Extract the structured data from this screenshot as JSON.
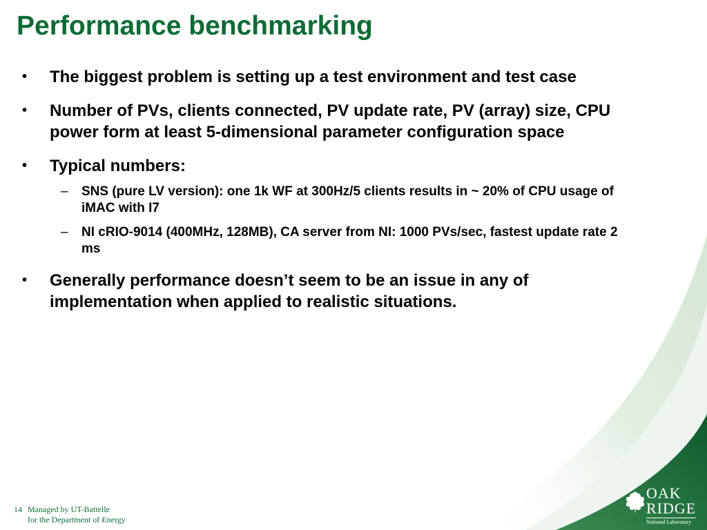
{
  "slide": {
    "title": "Performance benchmarking",
    "bullets": [
      {
        "text": "The biggest problem is setting up a test environment and test case"
      },
      {
        "text": "Number of PVs, clients connected, PV update rate, PV (array) size, CPU power form at least 5-dimensional parameter configuration space"
      },
      {
        "text": "Typical numbers:",
        "sub": [
          "SNS (pure LV version):  one 1k WF at 300Hz/5 clients results in ~ 20% of CPU usage of iMAC with I7",
          "NI  cRIO-9014 (400MHz, 128MB), CA server from NI: 1000 PVs/sec, fastest update rate 2 ms"
        ]
      },
      {
        "text": "Generally performance doesn’t seem to be an issue in any of implementation when applied to realistic situations."
      }
    ],
    "bullet_symbol": "•",
    "sub_bullet_symbol": "–"
  },
  "footer": {
    "page_number": "14",
    "line1": "Managed by UT-Battelle",
    "line2": "for the Department of Energy"
  },
  "logo": {
    "line1": "OAK",
    "line2": "RIDGE",
    "line3": "National Laboratory",
    "icon": "oak-leaf-icon"
  },
  "colors": {
    "title_green": "#0e6b35",
    "decor_green": "#1a6e3a",
    "decor_light": "#e8f1e8",
    "text": "#000000"
  }
}
